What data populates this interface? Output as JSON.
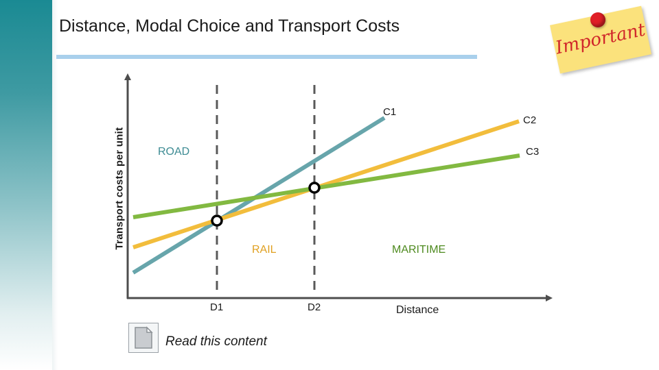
{
  "slide": {
    "title": "Distance, Modal Choice and Transport Costs",
    "sticky_note": "Important",
    "read_link": "Read this content"
  },
  "colors": {
    "road": "#67a5ab",
    "rail": "#f2bd3c",
    "maritime": "#82b941",
    "axis": "#4d4d4d",
    "divider": "#595959",
    "title_rule": "#a9d0ec",
    "rail_label": "#e0a020",
    "maritime_label": "#4e8a1f"
  },
  "icons": [
    "document-icon",
    "pushpin-icon"
  ],
  "chart_data": {
    "type": "line",
    "title": "Distance, Modal Choice and Transport Costs",
    "xlabel": "Distance",
    "ylabel": "Transport costs per unit",
    "series": [
      {
        "name": "C1",
        "mode": "ROAD",
        "color": "#67a5ab"
      },
      {
        "name": "C2",
        "mode": "RAIL",
        "color": "#f2bd3c"
      },
      {
        "name": "C3",
        "mode": "MARITIME",
        "color": "#82b941"
      }
    ],
    "breakpoints": [
      "D1",
      "D2"
    ],
    "regions": [
      "ROAD",
      "RAIL",
      "MARITIME"
    ],
    "grid": false
  }
}
